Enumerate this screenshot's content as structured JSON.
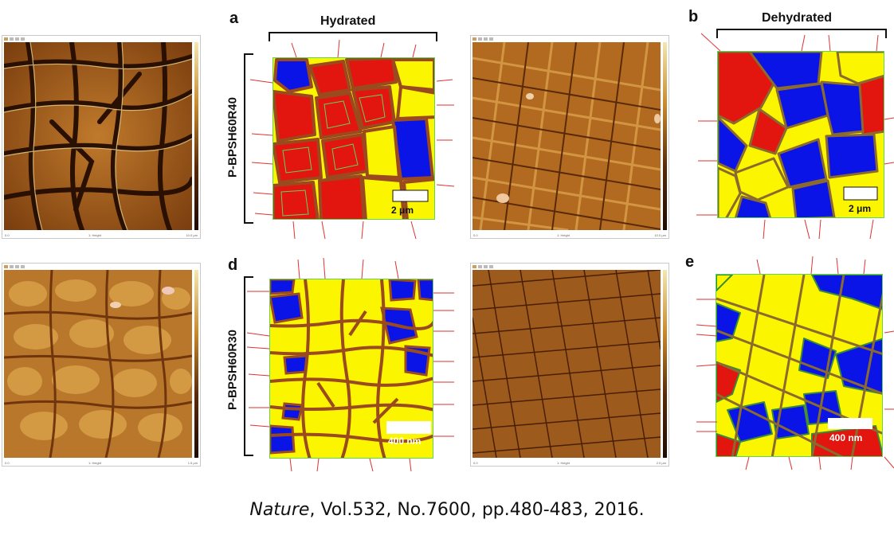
{
  "panels": {
    "a": "a",
    "b": "b",
    "d": "d",
    "e": "e"
  },
  "headers": {
    "hydrated": "Hydrated",
    "dehydrated": "Dehydrated"
  },
  "samples": {
    "top": "P-BPSH60R40",
    "bottom": "P-BPSH60R30"
  },
  "scale_bars": {
    "a": "2 μm",
    "b": "2 μm",
    "d": "400 nm",
    "e": "400 nm"
  },
  "afm": {
    "footer_center": "1: Height",
    "top_left_foot_right": "10.0 μm",
    "top_right_foot_right": "10.0 μm",
    "bottom_left_foot_right": "1.5 μm",
    "bottom_right_foot_right": "2.0 μm",
    "footer_left": "0.0"
  },
  "colors": {
    "red": "#e3150f",
    "yellow": "#fbf600",
    "blue": "#0a14e6",
    "boundary": "#9a4a1e",
    "afm_dark": "#3a1804",
    "afm_light": "#d9a24a"
  },
  "caption": {
    "journal": "Nature",
    "details": ", Vol.532, No.7600, pp.480-483, 2016."
  }
}
